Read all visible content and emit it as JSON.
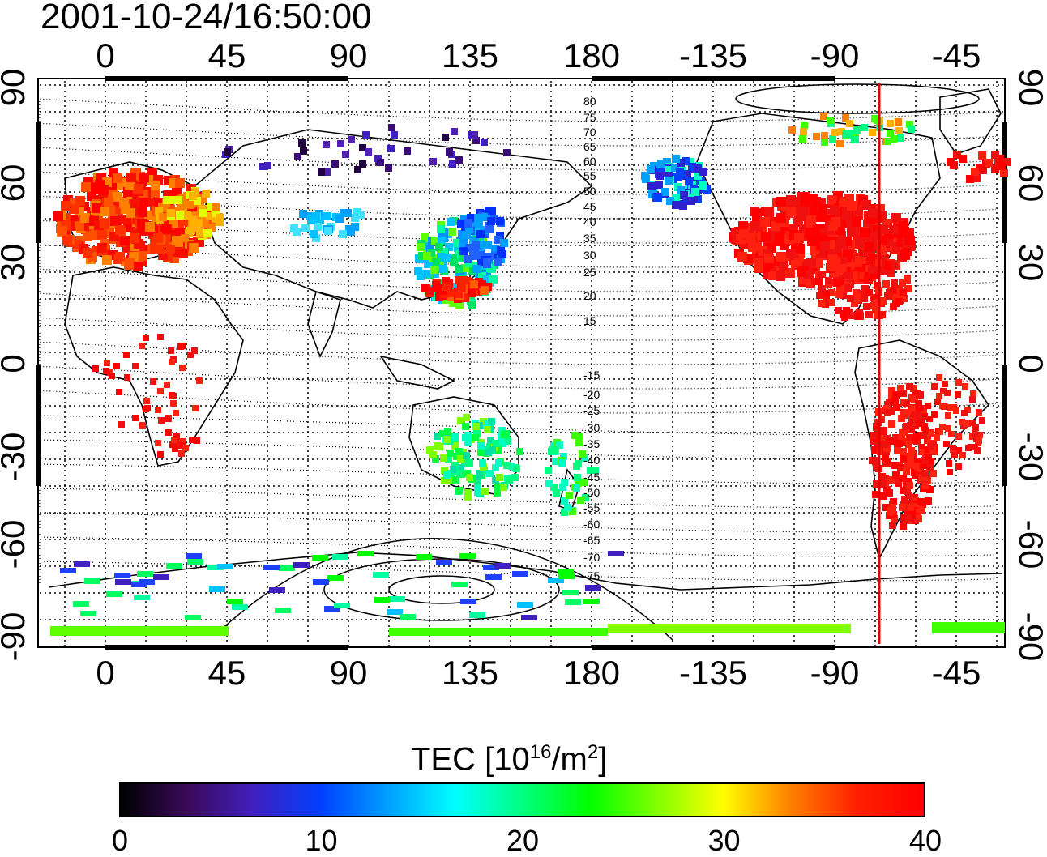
{
  "timestamp": "2001-10-24/16:50:00",
  "map": {
    "lon_ticks": [
      "0",
      "45",
      "90",
      "135",
      "180",
      "-135",
      "-90",
      "-45"
    ],
    "lat_ticks": [
      "90",
      "60",
      "30",
      "0",
      "-30",
      "-60",
      "-90"
    ],
    "contour_labels_north": [
      "80",
      "75",
      "70",
      "65",
      "60",
      "55",
      "50",
      "45",
      "40",
      "35",
      "30",
      "25",
      "20",
      "15"
    ],
    "contour_labels_south": [
      "-15",
      "-20",
      "-25",
      "-30",
      "-35",
      "-40",
      "-45",
      "-50",
      "-55",
      "-60",
      "-65",
      "-70",
      "-75"
    ],
    "terminator_color": "#e00000"
  },
  "colorbar": {
    "title_main": "TEC  [10",
    "title_exp": "16",
    "title_unit": "/m",
    "title_exp2": "2",
    "title_end": "]",
    "ticks": [
      "0",
      "10",
      "20",
      "30",
      "40"
    ],
    "range": [
      0,
      40
    ],
    "colors": [
      "#000000",
      "#3a0a5a",
      "#4020c0",
      "#0040ff",
      "#00a0ff",
      "#00ffff",
      "#00ff80",
      "#00ff00",
      "#80ff00",
      "#ffff00",
      "#ff8000",
      "#ff2000",
      "#ff0000"
    ]
  }
}
